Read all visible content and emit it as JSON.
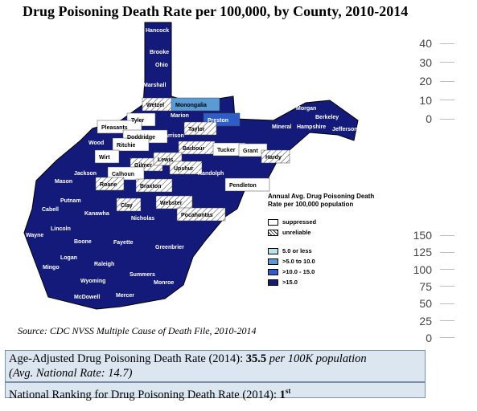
{
  "title": "Drug Poisoning Death Rate per 100,000, by County, 2010-2014",
  "colors": {
    "suppressed": "#ffffff",
    "unreliable": "hatch",
    "le5": "#b6e3ee",
    "r5_10": "#5b9bd5",
    "r10_15": "#2e5dc7",
    "gt15": "#141a7a"
  },
  "legend": {
    "title": "Annual Avg. Drug Poisoning Death Rate per 100,000 population",
    "suppressed": "suppressed",
    "unreliable": "unreliable",
    "le5": "5.0 or less",
    "r5_10": ">5.0 to 10.0",
    "r10_15": ">10.0 - 15.0",
    "gt15": ">15.0"
  },
  "axis_top": [
    "40",
    "30",
    "20",
    "10",
    "0"
  ],
  "axis_bottom": [
    "150",
    "125",
    "100",
    "75",
    "50",
    "25",
    "0"
  ],
  "counties": [
    {
      "name": "Hancock",
      "rate": ">15.0"
    },
    {
      "name": "Brooke",
      "rate": ">15.0"
    },
    {
      "name": "Ohio",
      "rate": ">15.0"
    },
    {
      "name": "Marshall",
      "rate": ">15.0"
    },
    {
      "name": "Wetzel",
      "rate": "unreliable"
    },
    {
      "name": "Monongalia",
      "rate": ">5.0 to 10.0"
    },
    {
      "name": "Preston",
      "rate": ">10.0 - 15.0"
    },
    {
      "name": "Marion",
      "rate": ">15.0"
    },
    {
      "name": "Tyler",
      "rate": "suppressed"
    },
    {
      "name": "Pleasants",
      "rate": "suppressed"
    },
    {
      "name": "Doddridge",
      "rate": "suppressed"
    },
    {
      "name": "Harrison",
      "rate": ">15.0"
    },
    {
      "name": "Taylor",
      "rate": "unreliable"
    },
    {
      "name": "Ritchie",
      "rate": "suppressed"
    },
    {
      "name": "Wood",
      "rate": ">15.0"
    },
    {
      "name": "Barbour",
      "rate": "unreliable"
    },
    {
      "name": "Tucker",
      "rate": "suppressed"
    },
    {
      "name": "Grant",
      "rate": "suppressed"
    },
    {
      "name": "Mineral",
      "rate": ">15.0"
    },
    {
      "name": "Hampshire",
      "rate": ">15.0"
    },
    {
      "name": "Morgan",
      "rate": ">15.0"
    },
    {
      "name": "Berkeley",
      "rate": ">15.0"
    },
    {
      "name": "Jefferson",
      "rate": ">15.0"
    },
    {
      "name": "Hardy",
      "rate": "unreliable"
    },
    {
      "name": "Wirt",
      "rate": "suppressed"
    },
    {
      "name": "Gilmer",
      "rate": "unreliable"
    },
    {
      "name": "Lewis",
      "rate": "unreliable"
    },
    {
      "name": "Upshur",
      "rate": "unreliable"
    },
    {
      "name": "Randolph",
      "rate": ">15.0"
    },
    {
      "name": "Pendleton",
      "rate": "suppressed"
    },
    {
      "name": "Jackson",
      "rate": ">15.0"
    },
    {
      "name": "Calhoun",
      "rate": "suppressed"
    },
    {
      "name": "Roane",
      "rate": "unreliable"
    },
    {
      "name": "Braxton",
      "rate": "unreliable"
    },
    {
      "name": "Webster",
      "rate": "unreliable"
    },
    {
      "name": "Pocahontas",
      "rate": "unreliable"
    },
    {
      "name": "Mason",
      "rate": ">15.0"
    },
    {
      "name": "Putnam",
      "rate": ">15.0"
    },
    {
      "name": "Clay",
      "rate": "unreliable"
    },
    {
      "name": "Nicholas",
      "rate": ">15.0"
    },
    {
      "name": "Cabell",
      "rate": ">15.0"
    },
    {
      "name": "Kanawha",
      "rate": ">15.0"
    },
    {
      "name": "Lincoln",
      "rate": ">15.0"
    },
    {
      "name": "Wayne",
      "rate": ">15.0"
    },
    {
      "name": "Boone",
      "rate": ">15.0"
    },
    {
      "name": "Fayette",
      "rate": ">15.0"
    },
    {
      "name": "Greenbrier",
      "rate": ">15.0"
    },
    {
      "name": "Logan",
      "rate": ">15.0"
    },
    {
      "name": "Mingo",
      "rate": ">15.0"
    },
    {
      "name": "Raleigh",
      "rate": ">15.0"
    },
    {
      "name": "Summers",
      "rate": ">15.0"
    },
    {
      "name": "Wyoming",
      "rate": ">15.0"
    },
    {
      "name": "Monroe",
      "rate": ">15.0"
    },
    {
      "name": "McDowell",
      "rate": ">15.0"
    },
    {
      "name": "Mercer",
      "rate": ">15.0"
    }
  ],
  "source": "Source: CDC NVSS Multiple Cause of Death File, 2010-2014",
  "info": {
    "rate_label": "Age-Adjusted Drug Poisoning Death Rate (2014):",
    "rate_value": "35.5",
    "rate_unit": "per 100K population",
    "national": "(Avg. National Rate: 14.7)",
    "ranking_label": "National Ranking for Drug Poisoning Death Rate (2014):",
    "ranking_value": "1",
    "ranking_suffix": "st"
  }
}
